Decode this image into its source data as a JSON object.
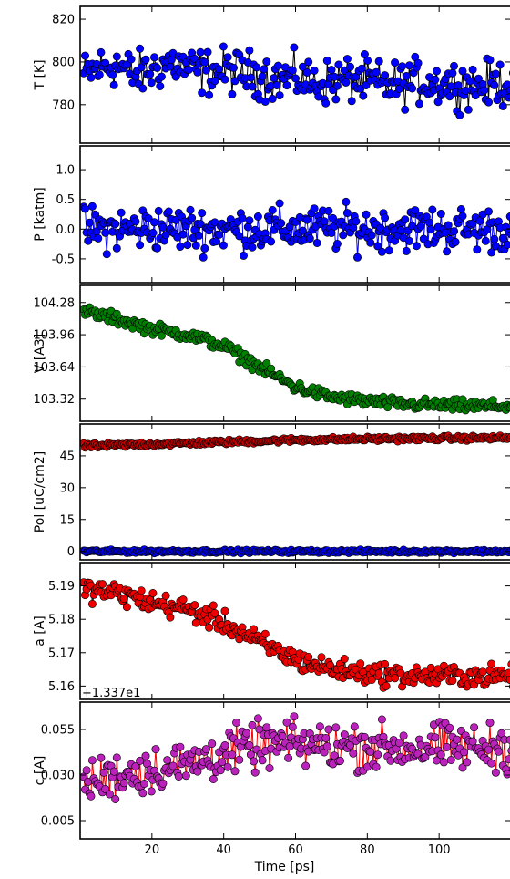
{
  "x_axis": {
    "label": "Time [ps]",
    "range": [
      0,
      120
    ],
    "ticks": [
      20,
      40,
      60,
      80,
      100
    ],
    "tick_labels": [
      "20",
      "40",
      "60",
      "80",
      "100"
    ]
  },
  "chart_data": [
    {
      "type": "line",
      "ylabel": "T [K]",
      "ylim": [
        762,
        826
      ],
      "yticks": [
        780,
        800,
        820
      ],
      "ytick_labels": [
        "780",
        "800",
        "820"
      ],
      "offset_label": "",
      "series": [
        {
          "color": "#0000ff",
          "line_color": "#000000",
          "x": [
            0,
            5,
            10,
            15,
            20,
            25,
            30,
            35,
            40,
            45,
            50,
            55,
            60,
            65,
            70,
            75,
            80,
            85,
            90,
            95,
            100,
            105,
            110,
            115,
            120
          ],
          "y": [
            793,
            797,
            799,
            794,
            796,
            800,
            797,
            795,
            796,
            795,
            794,
            792,
            793,
            790,
            791,
            792,
            791,
            789,
            790,
            791,
            790,
            790,
            789,
            790,
            790
          ],
          "noise": 9
        }
      ]
    },
    {
      "type": "line",
      "ylabel": "P [katm]",
      "ylim": [
        -0.9,
        1.4
      ],
      "yticks": [
        -0.5,
        0.0,
        0.5,
        1.0
      ],
      "ytick_labels": [
        "-0.5",
        "0.0",
        "0.5",
        "1.0"
      ],
      "offset_label": "",
      "series": [
        {
          "color": "#0000ff",
          "line_color": "#0000ff",
          "x": [
            0,
            10,
            20,
            30,
            40,
            50,
            60,
            70,
            80,
            90,
            100,
            110,
            120
          ],
          "y": [
            0.0,
            0.0,
            0.02,
            0.0,
            0.0,
            0.0,
            0.0,
            0.01,
            0.0,
            0.02,
            0.0,
            0.0,
            0.0
          ],
          "noise": 0.32
        }
      ]
    },
    {
      "type": "line",
      "ylabel": "V [A3]",
      "ylim": [
        103.1,
        104.45
      ],
      "yticks": [
        103.32,
        103.64,
        103.96,
        104.28
      ],
      "ytick_labels": [
        "103.32",
        "103.64",
        "103.96",
        "104.28"
      ],
      "offset_label": "",
      "series": [
        {
          "color": "#008000",
          "line_color": "#000000",
          "x": [
            0,
            10,
            20,
            30,
            40,
            50,
            60,
            70,
            80,
            90,
            100,
            110,
            120
          ],
          "y": [
            104.2,
            104.12,
            104.02,
            103.96,
            103.85,
            103.64,
            103.44,
            103.34,
            103.3,
            103.27,
            103.26,
            103.25,
            103.25
          ],
          "noise": 0.05
        }
      ]
    },
    {
      "type": "line",
      "ylabel": "Pol [uC/cm2]",
      "ylim": [
        -4,
        60
      ],
      "yticks": [
        0,
        15,
        30,
        45
      ],
      "ytick_labels": [
        "0",
        "15",
        "30",
        "45"
      ],
      "offset_label": "",
      "series": [
        {
          "color": "#cc0000",
          "line_color": "#000000",
          "x": [
            0,
            20,
            40,
            60,
            80,
            100,
            120
          ],
          "y": [
            49.5,
            50.5,
            51.5,
            52.5,
            53,
            53.3,
            53.5
          ],
          "noise": 0.9
        },
        {
          "color": "#0000ff",
          "line_color": "#000000",
          "x": [
            0,
            20,
            40,
            60,
            80,
            100,
            120
          ],
          "y": [
            0,
            0,
            0,
            0,
            0,
            0,
            0
          ],
          "noise": 0.6
        }
      ]
    },
    {
      "type": "line",
      "ylabel": "a [A]",
      "ylim": [
        5.156,
        5.197
      ],
      "yticks": [
        5.16,
        5.17,
        5.18,
        5.19
      ],
      "ytick_labels": [
        "5.16",
        "5.17",
        "5.18",
        "5.19"
      ],
      "offset_label": "+1.337e1",
      "series": [
        {
          "color": "#ee0000",
          "line_color": "#000000",
          "x": [
            0,
            10,
            20,
            30,
            40,
            50,
            60,
            70,
            80,
            90,
            100,
            110,
            120
          ],
          "y": [
            5.189,
            5.188,
            5.185,
            5.183,
            5.179,
            5.173,
            5.168,
            5.165,
            5.164,
            5.163,
            5.163,
            5.163,
            5.163
          ],
          "noise": 0.0028
        }
      ]
    },
    {
      "type": "line",
      "ylabel": "c [A]",
      "ylim": [
        -0.005,
        0.07
      ],
      "yticks": [
        0.005,
        0.03,
        0.055
      ],
      "ytick_labels": [
        "0.005",
        "0.030",
        "0.055"
      ],
      "offset_label": "",
      "series": [
        {
          "color": "#bb22bb",
          "line_color": "#ff0000",
          "x": [
            0,
            10,
            20,
            30,
            40,
            50,
            60,
            70,
            80,
            90,
            100,
            110,
            120
          ],
          "y": [
            0.025,
            0.03,
            0.033,
            0.036,
            0.042,
            0.046,
            0.047,
            0.046,
            0.046,
            0.045,
            0.045,
            0.045,
            0.045
          ],
          "noise": 0.011
        }
      ]
    }
  ]
}
